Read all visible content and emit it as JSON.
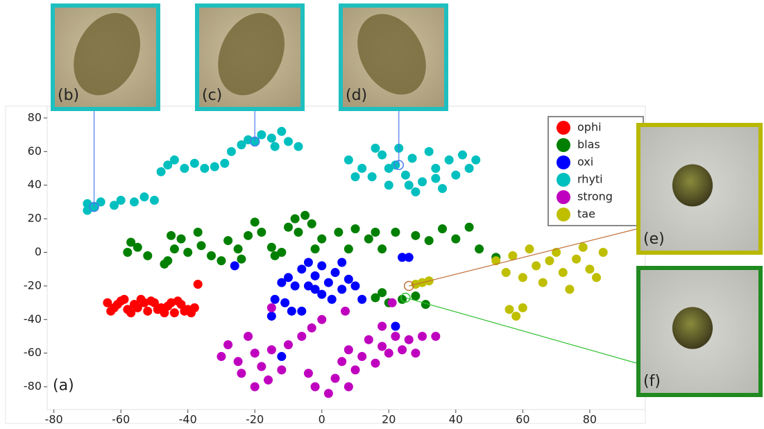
{
  "chart_data": {
    "type": "scatter",
    "xlim": [
      -82,
      96.6
    ],
    "ylim": [
      -93.6,
      87
    ],
    "xticks": [
      -80,
      -60,
      -40,
      -20,
      0,
      20,
      40,
      60,
      80
    ],
    "yticks": [
      -80,
      -60,
      -40,
      -20,
      0,
      20,
      40,
      60,
      80
    ],
    "grid": false,
    "legend": "upper right",
    "series": [
      {
        "name": "ophi",
        "color": "#ff0000",
        "x": [
          -64,
          -62,
          -60,
          -58,
          -56,
          -54,
          -52,
          -50,
          -48,
          -46,
          -44,
          -42,
          -40,
          -38,
          -63,
          -59,
          -55,
          -51,
          -47,
          -43,
          -39,
          -61,
          -57,
          -53,
          -49,
          -45,
          -41,
          -37
        ],
        "values": [
          -30,
          -33,
          -29,
          -34,
          -31,
          -28,
          -35,
          -30,
          -33,
          -32,
          -36,
          -31,
          -34,
          -33,
          -35,
          -28,
          -33,
          -29,
          -36,
          -29,
          -36,
          -31,
          -36,
          -30,
          -34,
          -30,
          -35,
          -19
        ]
      },
      {
        "name": "blas",
        "color": "#008000",
        "x": [
          -58,
          -55,
          -52,
          -57,
          -45,
          -44,
          -46,
          -42,
          -40,
          -37,
          -36,
          -33,
          -30,
          -28,
          -25,
          -22,
          -20,
          -18,
          -24,
          -15,
          -12,
          -10,
          -8,
          -14,
          -5,
          -3,
          -7,
          0,
          -2,
          5,
          8,
          10,
          14,
          16,
          18,
          22,
          28,
          32,
          36,
          40,
          44,
          47,
          52,
          16,
          18,
          20,
          24,
          28,
          31,
          -47
        ],
        "values": [
          0,
          3,
          -2,
          6,
          10,
          2,
          -5,
          8,
          0,
          12,
          4,
          -2,
          -5,
          7,
          2,
          10,
          18,
          12,
          -4,
          3,
          0,
          15,
          20,
          -2,
          22,
          17,
          12,
          8,
          2,
          12,
          2,
          14,
          8,
          12,
          2,
          12,
          10,
          7,
          14,
          8,
          15,
          2,
          -3,
          -27,
          -24,
          -30,
          -28,
          -26,
          -31,
          -7
        ]
      },
      {
        "name": "oxi",
        "color": "#0000ff",
        "x": [
          -10,
          -6,
          -4,
          -2,
          0,
          2,
          4,
          6,
          8,
          -8,
          -4,
          0,
          3,
          -12,
          10,
          6,
          -2,
          -11,
          -14,
          -9,
          -15,
          -6,
          12,
          26,
          24,
          22,
          -26,
          -12
        ],
        "values": [
          -15,
          -10,
          -20,
          -14,
          -8,
          -18,
          -12,
          -22,
          -16,
          -20,
          -6,
          -25,
          -28,
          -18,
          -20,
          -6,
          -22,
          -30,
          -28,
          -35,
          -38,
          -35,
          -28,
          -3,
          -3,
          -44,
          -8,
          -62
        ]
      },
      {
        "name": "rhyti",
        "color": "#00bfbf",
        "x": [
          -70,
          -68,
          -66,
          -70,
          -62,
          -60,
          -56,
          -53,
          -50,
          -48,
          -46,
          -44,
          -41,
          -38,
          -35,
          -32,
          -29,
          -27,
          -24,
          -22,
          -20,
          -18,
          -15,
          -12,
          -10,
          -7,
          -14,
          8,
          12,
          15,
          18,
          20,
          22,
          23,
          25,
          27,
          30,
          32,
          34,
          36,
          38,
          40,
          42,
          44,
          28,
          16,
          10,
          46,
          20,
          34,
          26
        ],
        "values": [
          29,
          27,
          30,
          25,
          28,
          31,
          30,
          33,
          31,
          48,
          52,
          55,
          50,
          53,
          50,
          51,
          53,
          60,
          64,
          67,
          66,
          70,
          68,
          72,
          66,
          63,
          63,
          55,
          50,
          45,
          58,
          40,
          52,
          62,
          46,
          56,
          42,
          60,
          50,
          38,
          55,
          46,
          58,
          50,
          36,
          62,
          45,
          55,
          50,
          44,
          40
        ]
      },
      {
        "name": "strong",
        "color": "#bf00bf",
        "x": [
          -30,
          -28,
          -25,
          -22,
          -20,
          -18,
          -15,
          -24,
          -20,
          -16,
          -12,
          -10,
          -6,
          -3,
          0,
          -4,
          -2,
          2,
          4,
          6,
          8,
          10,
          12,
          14,
          16,
          18,
          20,
          22,
          24,
          26,
          30,
          34,
          8,
          -15,
          7,
          21,
          18,
          28
        ],
        "values": [
          -62,
          -55,
          -65,
          -50,
          -60,
          -68,
          -58,
          -72,
          -80,
          -76,
          -70,
          -55,
          -50,
          -45,
          -40,
          -72,
          -80,
          -84,
          -75,
          -65,
          -58,
          -70,
          -62,
          -52,
          -66,
          -56,
          -60,
          -50,
          -58,
          -52,
          -50,
          -50,
          -80,
          -33,
          -35,
          -30,
          -44,
          -60
        ]
      },
      {
        "name": "tae",
        "color": "#bfbf00",
        "x": [
          52,
          55,
          57,
          60,
          62,
          64,
          66,
          68,
          70,
          72,
          74,
          76,
          78,
          80,
          82,
          84,
          56,
          58,
          60,
          28,
          30,
          32
        ],
        "values": [
          -5,
          -12,
          -2,
          -15,
          2,
          -8,
          -18,
          -5,
          0,
          -12,
          -22,
          -4,
          3,
          -10,
          -15,
          0,
          -34,
          -38,
          -33,
          -19,
          -18,
          -17
        ]
      }
    ],
    "annotations": [
      {
        "text": "(a)"
      },
      {
        "text": "(b)",
        "x": -68,
        "y": 27,
        "color": "#1fbfbf"
      },
      {
        "text": "(c)",
        "x": -20,
        "y": 66,
        "color": "#1fbfbf"
      },
      {
        "text": "(d)",
        "x": 23,
        "y": 52,
        "color": "#1fbfbf"
      },
      {
        "text": "(e)",
        "x": 26,
        "y": -20,
        "color": "#b8b800"
      },
      {
        "text": "(f)",
        "x": 25,
        "y": -27,
        "color": "#1f8a1f"
      }
    ]
  }
}
